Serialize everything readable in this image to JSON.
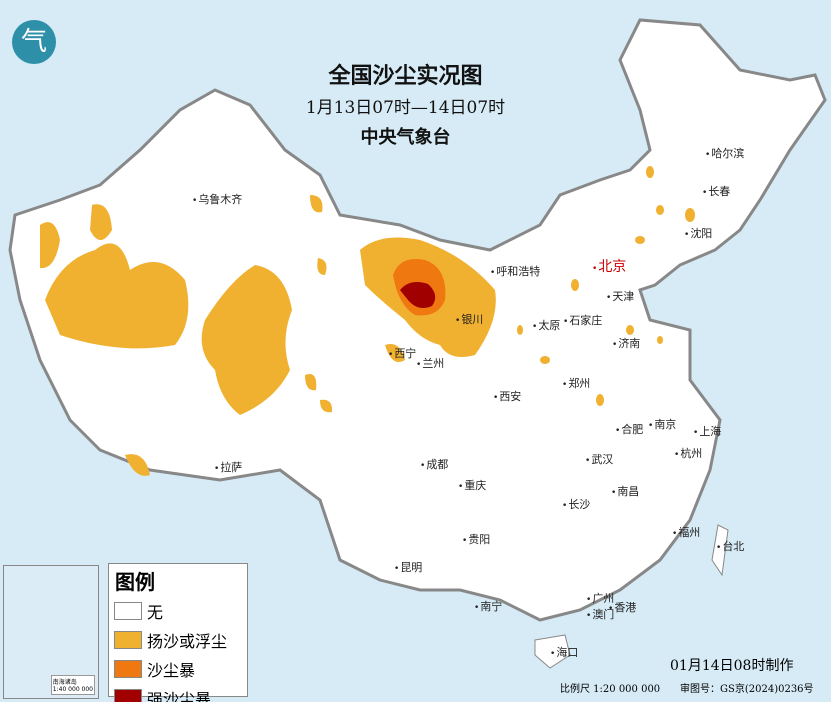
{
  "header": {
    "title": "全国沙尘实况图",
    "period": "1月13日07时—14日07时",
    "agency": "中央气象台"
  },
  "logo": {
    "icon": "cma-logo",
    "text": "气"
  },
  "colors": {
    "sea": "#d6ebf5",
    "land": "#ffffff",
    "none": "#ffffff",
    "blowing_dust": "#f0b030",
    "sandstorm": "#f07810",
    "severe_sandstorm": "#a00000"
  },
  "legend": {
    "title": "图例",
    "items": [
      {
        "label": "无",
        "color": "#ffffff"
      },
      {
        "label": "扬沙或浮尘",
        "color": "#f0b030"
      },
      {
        "label": "沙尘暴",
        "color": "#f07810"
      },
      {
        "label": "强沙尘暴",
        "color": "#a00000"
      }
    ]
  },
  "cities": [
    {
      "name": "乌鲁木齐"
    },
    {
      "name": "哈尔滨"
    },
    {
      "name": "长春"
    },
    {
      "name": "沈阳"
    },
    {
      "name": "呼和浩特"
    },
    {
      "name": "北京"
    },
    {
      "name": "天津"
    },
    {
      "name": "银川"
    },
    {
      "name": "太原"
    },
    {
      "name": "石家庄"
    },
    {
      "name": "济南"
    },
    {
      "name": "西宁"
    },
    {
      "name": "兰州"
    },
    {
      "name": "郑州"
    },
    {
      "name": "西安"
    },
    {
      "name": "合肥"
    },
    {
      "name": "南京"
    },
    {
      "name": "上海"
    },
    {
      "name": "杭州"
    },
    {
      "name": "武汉"
    },
    {
      "name": "拉萨"
    },
    {
      "name": "成都"
    },
    {
      "name": "重庆"
    },
    {
      "name": "长沙"
    },
    {
      "name": "南昌"
    },
    {
      "name": "福州"
    },
    {
      "name": "台北"
    },
    {
      "name": "贵阳"
    },
    {
      "name": "昆明"
    },
    {
      "name": "南宁"
    },
    {
      "name": "广州"
    },
    {
      "name": "澳门"
    },
    {
      "name": "香港"
    },
    {
      "name": "海口"
    }
  ],
  "inset": {
    "label": "南海诸岛",
    "scale": "1:40 000 000"
  },
  "footer": {
    "made": "01月14日08时制作",
    "scale": "比例尺 1:20 000 000",
    "review": "审图号：GS京(2024)0236号"
  }
}
